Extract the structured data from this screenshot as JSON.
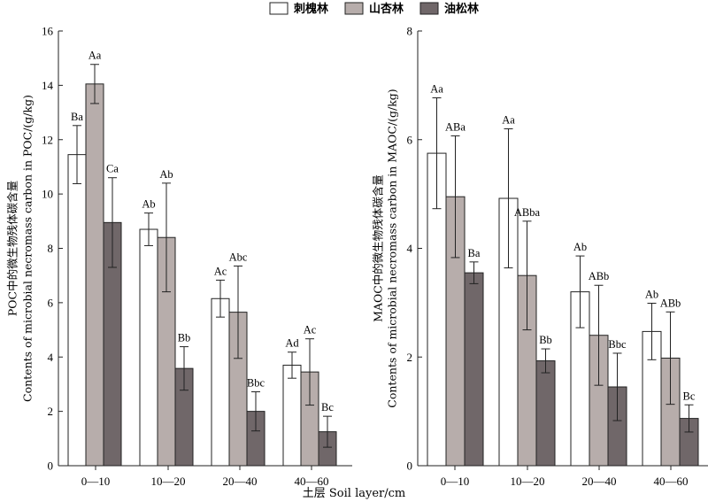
{
  "legend": {
    "items": [
      {
        "label": "刺槐林",
        "color": "#ffffff"
      },
      {
        "label": "山杏林",
        "color": "#b7adab"
      },
      {
        "label": "油松林",
        "color": "#706769"
      }
    ]
  },
  "xlabel": "土层  Soil layer/cm",
  "chart_data": [
    {
      "type": "bar",
      "title": "",
      "ylabel_line1": "POC中的微生物残体碳含量",
      "ylabel_line2": "Contents of microbial necromass carbon in POC/(g/kg)",
      "ylim": [
        0,
        16
      ],
      "yticks": [
        0,
        2,
        4,
        6,
        8,
        10,
        12,
        14,
        16
      ],
      "categories": [
        "0—10",
        "10—20",
        "20—40",
        "40—60"
      ],
      "series": [
        {
          "name": "刺槐林",
          "values": [
            11.45,
            8.7,
            6.15,
            3.7
          ],
          "errors": [
            1.07,
            0.6,
            0.68,
            0.48
          ],
          "labels": [
            "Ba",
            "Ab",
            "Ac",
            "Ad"
          ]
        },
        {
          "name": "山杏林",
          "values": [
            14.05,
            8.4,
            5.65,
            3.45
          ],
          "errors": [
            0.72,
            2.0,
            1.7,
            1.22
          ],
          "labels": [
            "Aa",
            "Ab",
            "Abc",
            "Ac"
          ]
        },
        {
          "name": "油松林",
          "values": [
            8.95,
            3.58,
            2.0,
            1.25
          ],
          "errors": [
            1.65,
            0.8,
            0.72,
            0.57
          ],
          "labels": [
            "Ca",
            "Bb",
            "Bbc",
            "Bc"
          ]
        }
      ]
    },
    {
      "type": "bar",
      "title": "",
      "ylabel_line1": "MAOC中的微生物残体碳含量",
      "ylabel_line2": "Contents of microbial necromass carbon in MAOC/(g/kg)",
      "ylim": [
        0,
        8
      ],
      "yticks": [
        0,
        2,
        4,
        6,
        8
      ],
      "categories": [
        "0—10",
        "10—20",
        "20—40",
        "40—60"
      ],
      "series": [
        {
          "name": "刺槐林",
          "values": [
            5.75,
            4.92,
            3.2,
            2.47
          ],
          "errors": [
            1.02,
            1.28,
            0.66,
            0.52
          ],
          "labels": [
            "Aa",
            "Aa",
            "Ab",
            "Ab"
          ]
        },
        {
          "name": "山杏林",
          "values": [
            4.95,
            3.5,
            2.4,
            1.98
          ],
          "errors": [
            1.12,
            1.0,
            0.92,
            0.85
          ],
          "labels": [
            "ABa",
            "ABba",
            "ABb",
            "ABb"
          ]
        },
        {
          "name": "油松林",
          "values": [
            3.55,
            1.93,
            1.45,
            0.87
          ],
          "errors": [
            0.2,
            0.22,
            0.62,
            0.25
          ],
          "labels": [
            "Ba",
            "Bb",
            "Bbc",
            "Bc"
          ]
        }
      ]
    }
  ]
}
